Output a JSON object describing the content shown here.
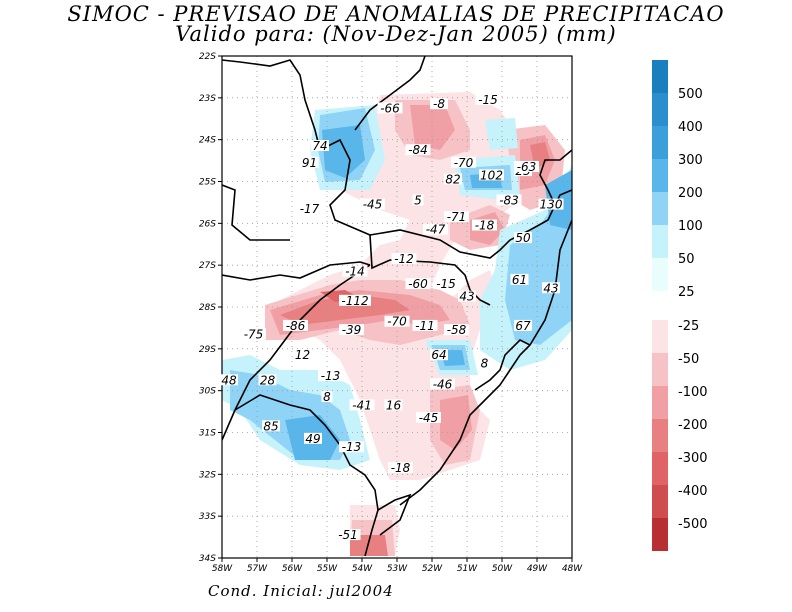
{
  "title_line1": "SIMOC - PREVISAO DE ANOMALIAS DE PRECIPITACAO",
  "title_line2": "Valido para: (Nov-Dez-Jan 2005) (mm)",
  "footer": "Cond. Inicial: jul2004",
  "axes": {
    "lat_labels": [
      "22S",
      "23S",
      "24S",
      "25S",
      "26S",
      "27S",
      "28S",
      "29S",
      "30S",
      "31S",
      "32S",
      "33S",
      "34S"
    ],
    "lon_labels": [
      "58W",
      "57W",
      "56W",
      "55W",
      "54W",
      "53W",
      "52W",
      "51W",
      "50W",
      "49W",
      "48W"
    ]
  },
  "colorbar": {
    "positive": [
      {
        "label": "500",
        "color": "#1a7fbf"
      },
      {
        "label": "400",
        "color": "#2a8fcc"
      },
      {
        "label": "300",
        "color": "#3a9fda"
      },
      {
        "label": "200",
        "color": "#58b6ea"
      },
      {
        "label": "100",
        "color": "#8fd4f6"
      },
      {
        "label": "50",
        "color": "#c6f2fb"
      },
      {
        "label": "25",
        "color": "#e9fdfd"
      }
    ],
    "negative": [
      {
        "label": "-25",
        "color": "#fce3e6"
      },
      {
        "label": "-50",
        "color": "#f7c2c6"
      },
      {
        "label": "-100",
        "color": "#f0a0a4"
      },
      {
        "label": "-200",
        "color": "#e87f80"
      },
      {
        "label": "-300",
        "color": "#e06466"
      },
      {
        "label": "-400",
        "color": "#cf4c4f"
      },
      {
        "label": "-500",
        "color": "#b72e33"
      }
    ]
  },
  "contour_labels": [
    {
      "text": "-66",
      "lon": -53.2,
      "lat": -23.3
    },
    {
      "text": "-8",
      "lon": -51.8,
      "lat": -23.2
    },
    {
      "text": "-15",
      "lon": -50.4,
      "lat": -23.1
    },
    {
      "text": "25",
      "lon": -49.4,
      "lat": -24.8
    },
    {
      "text": "74",
      "lon": -55.2,
      "lat": -24.2
    },
    {
      "text": "91",
      "lon": -55.5,
      "lat": -24.6
    },
    {
      "text": "-84",
      "lon": -52.4,
      "lat": -24.3
    },
    {
      "text": "-70",
      "lon": -51.1,
      "lat": -24.6
    },
    {
      "text": "-63",
      "lon": -49.3,
      "lat": -24.7
    },
    {
      "text": "82",
      "lon": -51.4,
      "lat": -25.0
    },
    {
      "text": "102",
      "lon": -50.3,
      "lat": -24.9
    },
    {
      "text": "-17",
      "lon": -55.5,
      "lat": -25.7
    },
    {
      "text": "-45",
      "lon": -53.7,
      "lat": -25.6
    },
    {
      "text": "5",
      "lon": -52.4,
      "lat": -25.5
    },
    {
      "text": "-83",
      "lon": -49.8,
      "lat": -25.5
    },
    {
      "text": "130",
      "lon": -48.6,
      "lat": -25.6
    },
    {
      "text": "-71",
      "lon": -51.3,
      "lat": -25.9
    },
    {
      "text": "-47",
      "lon": -51.9,
      "lat": -26.2
    },
    {
      "text": "-18",
      "lon": -50.5,
      "lat": -26.1
    },
    {
      "text": "50",
      "lon": -49.4,
      "lat": -26.4
    },
    {
      "text": "-12",
      "lon": -52.8,
      "lat": -26.9
    },
    {
      "text": "-14",
      "lon": -54.2,
      "lat": -27.2
    },
    {
      "text": "-60",
      "lon": -52.4,
      "lat": -27.5
    },
    {
      "text": "-15",
      "lon": -51.6,
      "lat": -27.5
    },
    {
      "text": "61",
      "lon": -49.5,
      "lat": -27.4
    },
    {
      "text": "43",
      "lon": -48.6,
      "lat": -27.6
    },
    {
      "text": "43",
      "lon": -51.0,
      "lat": -27.8
    },
    {
      "text": "-112",
      "lon": -54.2,
      "lat": -27.9
    },
    {
      "text": "-86",
      "lon": -55.9,
      "lat": -28.5
    },
    {
      "text": "-75",
      "lon": -57.1,
      "lat": -28.7
    },
    {
      "text": "-39",
      "lon": -54.3,
      "lat": -28.6
    },
    {
      "text": "-70",
      "lon": -53.0,
      "lat": -28.4
    },
    {
      "text": "-11",
      "lon": -52.2,
      "lat": -28.5
    },
    {
      "text": "-58",
      "lon": -51.3,
      "lat": -28.6
    },
    {
      "text": "67",
      "lon": -49.4,
      "lat": -28.5
    },
    {
      "text": "12",
      "lon": -55.7,
      "lat": -29.2
    },
    {
      "text": "64",
      "lon": -51.8,
      "lat": -29.2
    },
    {
      "text": "8",
      "lon": -50.5,
      "lat": -29.4
    },
    {
      "text": "-13",
      "lon": -54.9,
      "lat": -29.7
    },
    {
      "text": "48",
      "lon": -57.8,
      "lat": -29.8
    },
    {
      "text": "28",
      "lon": -56.7,
      "lat": -29.8
    },
    {
      "text": "-46",
      "lon": -51.7,
      "lat": -29.9
    },
    {
      "text": "8",
      "lon": -55.0,
      "lat": -30.2
    },
    {
      "text": "-41",
      "lon": -54.0,
      "lat": -30.4
    },
    {
      "text": "16",
      "lon": -53.1,
      "lat": -30.4
    },
    {
      "text": "-45",
      "lon": -52.1,
      "lat": -30.7
    },
    {
      "text": "85",
      "lon": -56.6,
      "lat": -30.9
    },
    {
      "text": "49",
      "lon": -55.4,
      "lat": -31.2
    },
    {
      "text": "-13",
      "lon": -54.3,
      "lat": -31.4
    },
    {
      "text": "-18",
      "lon": -52.9,
      "lat": -31.9
    },
    {
      "text": "-51",
      "lon": -54.4,
      "lat": -33.5
    }
  ]
}
